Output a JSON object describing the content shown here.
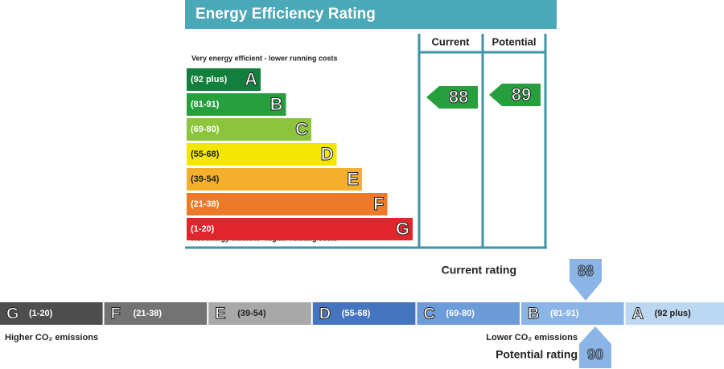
{
  "energy_rating": {
    "title": "Energy Efficiency Rating",
    "top_note": "Very energy efficient - lower running costs",
    "bottom_note": "Not energy efficient - higher running costs",
    "columns": [
      "Current",
      "Potential"
    ],
    "bands": [
      {
        "range": "(92 plus)",
        "letter": "A",
        "color": "#12803c"
      },
      {
        "range": "(81-91)",
        "letter": "B",
        "color": "#25a03c"
      },
      {
        "range": "(69-80)",
        "letter": "C",
        "color": "#8cc43c"
      },
      {
        "range": "(55-68)",
        "letter": "D",
        "color": "#f4e600"
      },
      {
        "range": "(39-54)",
        "letter": "E",
        "color": "#f4b02c"
      },
      {
        "range": "(21-38)",
        "letter": "F",
        "color": "#ec7a28"
      },
      {
        "range": "(1-20)",
        "letter": "G",
        "color": "#e0262c"
      }
    ],
    "current": 88,
    "potential": 89
  },
  "co2": {
    "bands": [
      {
        "letter": "G",
        "range": "(1-20)",
        "color": "#4e4e4e"
      },
      {
        "letter": "F",
        "range": "(21-38)",
        "color": "#737373"
      },
      {
        "letter": "E",
        "range": "(39-54)",
        "color": "#a8a8a8"
      },
      {
        "letter": "D",
        "range": "(55-68)",
        "color": "#4675bf"
      },
      {
        "letter": "C",
        "range": "(69-80)",
        "color": "#6b9bd8"
      },
      {
        "letter": "B",
        "range": "(81-91)",
        "color": "#8ab5e6"
      },
      {
        "letter": "A",
        "range": "(92 plus)",
        "color": "#bcd7f2"
      }
    ],
    "current_label": "Current rating",
    "current": 88,
    "potential_label": "Potential rating",
    "potential": 90,
    "high_label": "Higher CO₂ emissions",
    "low_label": "Lower CO₂ emissions"
  }
}
